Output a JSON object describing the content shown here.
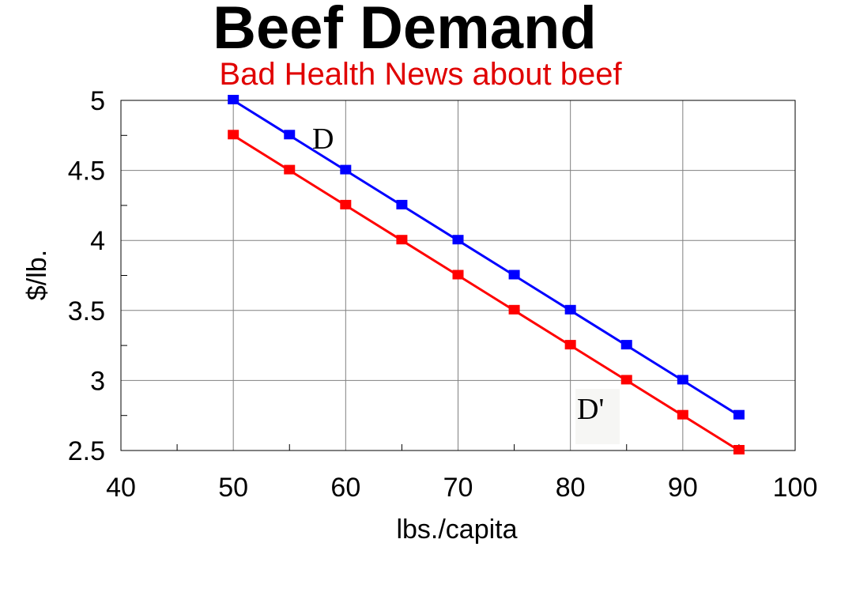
{
  "title": "Beef Demand",
  "subtitle": "Bad Health News about beef",
  "colors": {
    "subtitle": "#e00000",
    "series_d": "#0000ff",
    "series_d_prime": "#ff0000",
    "grid": "#808080"
  },
  "chart_data": {
    "type": "line",
    "title": "Beef Demand",
    "subtitle": "Bad Health News about beef",
    "xlabel": "lbs./capita",
    "ylabel": "$/lb.",
    "xlim": [
      40,
      100
    ],
    "ylim": [
      2.5,
      5
    ],
    "x_ticks": [
      "40",
      "50",
      "60",
      "70",
      "80",
      "90",
      "100"
    ],
    "y_ticks": [
      "2.5",
      "3",
      "3.5",
      "4",
      "4.5",
      "5"
    ],
    "grid": true,
    "series": [
      {
        "name": "D",
        "x": [
          50,
          55,
          60,
          65,
          70,
          75,
          80,
          85,
          90,
          95
        ],
        "y": [
          5.0,
          4.75,
          4.5,
          4.25,
          4.0,
          3.75,
          3.5,
          3.25,
          3.0,
          2.75
        ]
      },
      {
        "name": "D'",
        "x": [
          50,
          55,
          60,
          65,
          70,
          75,
          80,
          85,
          90,
          95
        ],
        "y": [
          4.75,
          4.5,
          4.25,
          4.0,
          3.75,
          3.5,
          3.25,
          3.0,
          2.75,
          2.5
        ]
      }
    ]
  }
}
